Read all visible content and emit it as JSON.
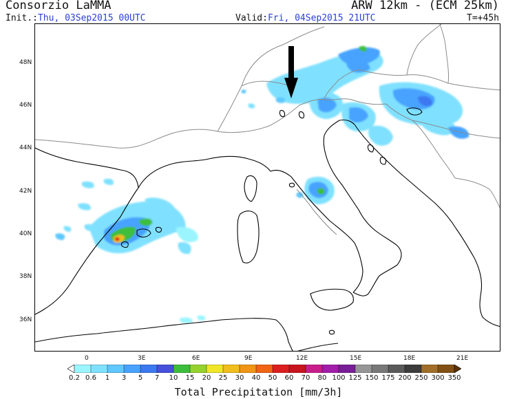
{
  "header": {
    "org": "Consorzio LaMMA",
    "model": "ARW 12km - (ECM 25km)",
    "init_label": "Init.:",
    "init_value": "Thu, 03Sep2015 00UTC",
    "valid_label": "Valid:",
    "valid_value": "Fri, 04Sep2015 21UTC",
    "step": "T=+45h"
  },
  "map": {
    "lat_labels": [
      "48N",
      "46N",
      "44N",
      "42N",
      "40N",
      "38N",
      "36N"
    ],
    "lon_labels": [
      "0",
      "3E",
      "6E",
      "9E",
      "12E",
      "15E",
      "18E",
      "21E"
    ],
    "land_color": "#ffffff",
    "border_color": "#8a8a8a",
    "coast_color": "#000000"
  },
  "colorbar": {
    "title": "Total Precipitation [mm/3h]",
    "levels": [
      "0.2",
      "0.6",
      "1",
      "3",
      "5",
      "7",
      "10",
      "15",
      "20",
      "25",
      "30",
      "40",
      "50",
      "60",
      "70",
      "80",
      "100",
      "125",
      "150",
      "175",
      "200",
      "250",
      "300",
      "350"
    ],
    "colors": [
      "#9bf5ff",
      "#7fe1ff",
      "#5fc8ff",
      "#47a3ff",
      "#3c78f0",
      "#4650dc",
      "#3cbe3c",
      "#96d22d",
      "#f0e628",
      "#f0be1e",
      "#f09614",
      "#f06414",
      "#dc1e1e",
      "#c8141e",
      "#c81e8c",
      "#a01eaa",
      "#781e96",
      "#969696",
      "#787878",
      "#5a5a5a",
      "#3c3c3c",
      "#a06e28",
      "#825014",
      "#5a320a"
    ]
  }
}
